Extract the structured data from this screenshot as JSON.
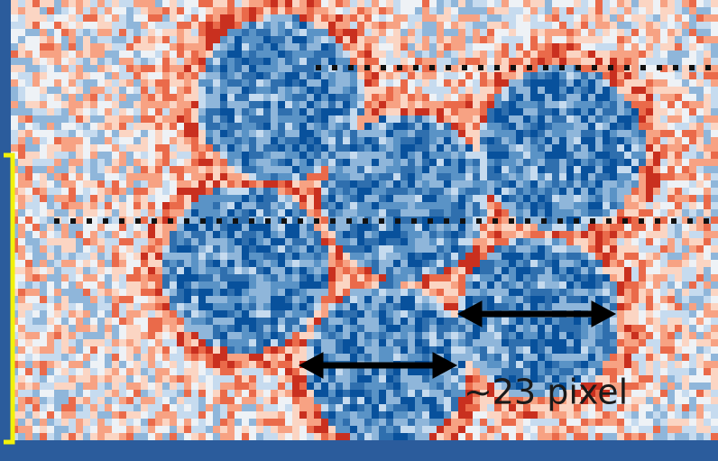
{
  "annotation": {
    "label": "~23 pixel"
  }
}
